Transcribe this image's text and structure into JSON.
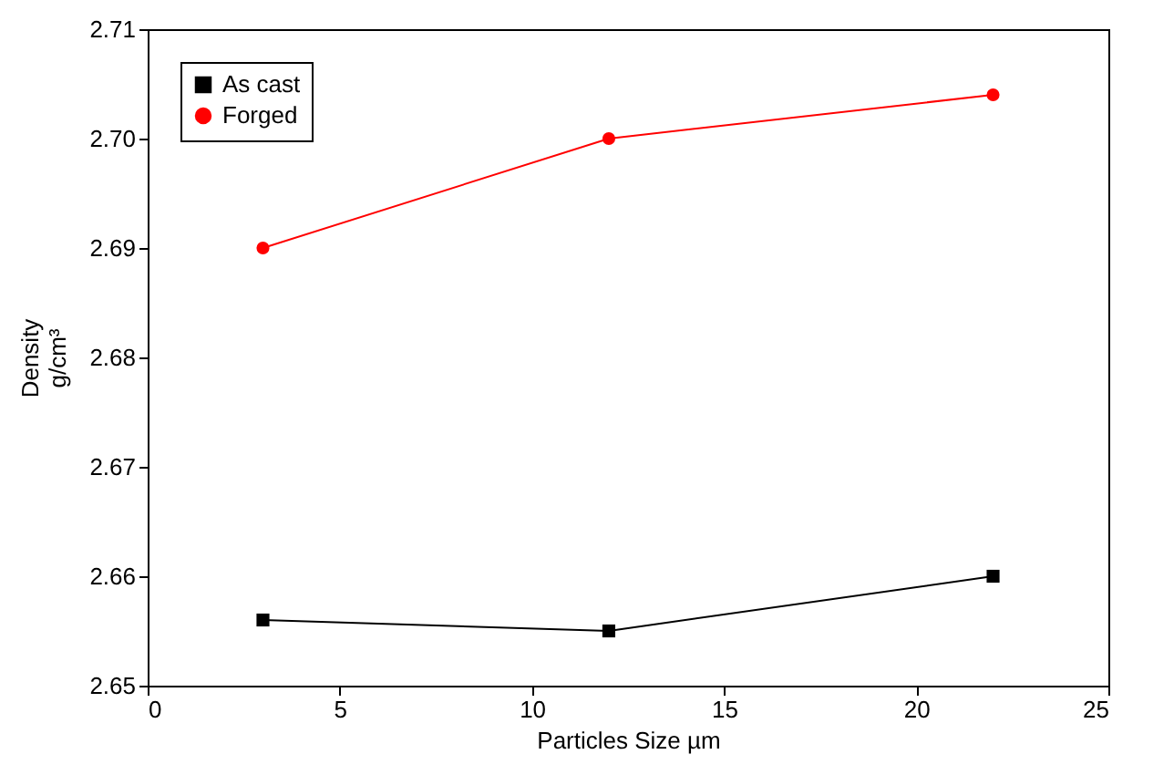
{
  "chart_data": {
    "type": "line",
    "xlabel": "Particles Size µm",
    "ylabel": "Density\ng/cm³",
    "xlim": [
      0,
      25
    ],
    "xticks": [
      0,
      5,
      10,
      15,
      20,
      25
    ],
    "ylim": [
      2.65,
      2.71
    ],
    "yticks": [
      2.65,
      2.66,
      2.67,
      2.68,
      2.69,
      {
        "value": 2.7,
        "label": "2.70"
      },
      2.71
    ],
    "x": [
      3,
      12,
      22
    ],
    "legend": "top left",
    "grid": false,
    "line_style": "solid",
    "series": [
      {
        "name": "As cast",
        "color": "#000000",
        "marker": "square",
        "values": [
          2.656,
          2.655,
          2.66
        ]
      },
      {
        "name": "Forged",
        "color": "#ff0000",
        "marker": "circle",
        "values": [
          2.69,
          2.7,
          2.704
        ]
      }
    ]
  }
}
